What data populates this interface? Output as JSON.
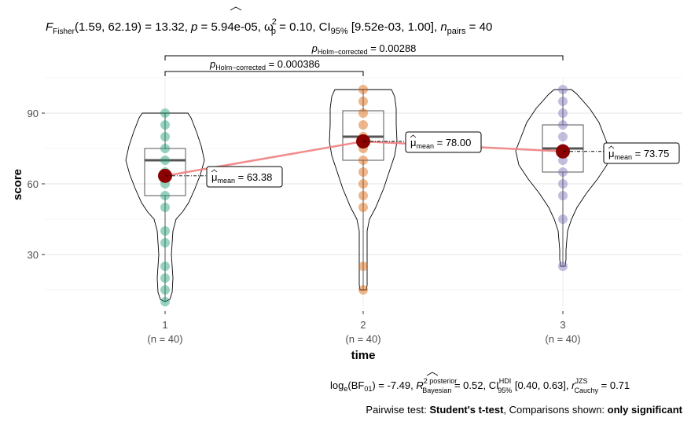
{
  "chart_data": {
    "type": "violin-box-scatter",
    "title": {
      "stat_name": "F",
      "stat_sub": "Fisher",
      "df": "(1.59, 62.19)",
      "stat_value": "13.32",
      "p_label": "p",
      "p_value": "5.94e-05",
      "effect_label": "ω",
      "effect_sup": "2",
      "effect_sub": "p",
      "effect_value": "0.10",
      "ci_label": "CI",
      "ci_sub": "95%",
      "ci_value": "[9.52e-03, 1.00]",
      "n_label": "n",
      "n_sub": "pairs",
      "n_value": "40"
    },
    "xlabel": "time",
    "ylabel": "score",
    "ylim": [
      5,
      105
    ],
    "yticks": [
      30,
      60,
      90
    ],
    "grid": true,
    "categories": [
      "1",
      "2",
      "3"
    ],
    "n_labels": [
      "(n = 40)",
      "(n = 40)",
      "(n = 40)"
    ],
    "groups": [
      {
        "name": "1",
        "color": "#1B9E77",
        "points": [
          90,
          85,
          80,
          75,
          70,
          65,
          60,
          55,
          50,
          40,
          35,
          25,
          20,
          15,
          10
        ],
        "box": {
          "q1": 55,
          "median": 70,
          "q3": 75,
          "min": 10,
          "max": 90
        },
        "mean": 63.38,
        "mean_label": "63.38"
      },
      {
        "name": "2",
        "color": "#D95F02",
        "points": [
          100,
          95,
          90,
          85,
          80,
          75,
          70,
          65,
          60,
          55,
          50,
          25,
          15
        ],
        "box": {
          "q1": 70,
          "median": 80,
          "q3": 91,
          "min": 15,
          "max": 100
        },
        "mean": 78.0,
        "mean_label": "78.00"
      },
      {
        "name": "3",
        "color": "#7570B3",
        "points": [
          100,
          95,
          90,
          85,
          80,
          75,
          70,
          65,
          60,
          55,
          45,
          25
        ],
        "box": {
          "q1": 65,
          "median": 75,
          "q3": 85,
          "min": 25,
          "max": 100
        },
        "mean": 73.75,
        "mean_label": "73.75"
      }
    ],
    "mean_label_prefix": "μ",
    "mean_label_sub": "mean",
    "pairwise": [
      {
        "from": "1",
        "to": "2",
        "p_label": "p",
        "p_sub": "Holm−corrected",
        "p_value": "0.000386"
      },
      {
        "from": "1",
        "to": "3",
        "p_label": "p",
        "p_sub": "Holm−corrected",
        "p_value": "0.00288"
      }
    ],
    "bayes_caption": {
      "bf_label": "log",
      "bf_sub": "e",
      "bf_paren": "(BF",
      "bf_paren_sub": "01",
      "bf_value": "-7.49",
      "r2_label": "R",
      "r2_sup": "2 posterior",
      "r2_sub": "Bayesian",
      "r2_value": "0.52",
      "ci_label": "CI",
      "ci_sup": "HDI",
      "ci_sub": "95%",
      "ci_value": "[0.40, 0.63]",
      "r_label": "r",
      "r_sup": "JZS",
      "r_sub": "Cauchy",
      "r_value": "0.71"
    },
    "pairwise_caption": {
      "prefix": "Pairwise test: ",
      "test": "Student's t-test",
      "middle": ", Comparisons shown: ",
      "shown": "only significant"
    },
    "mean_color": "#8B0000",
    "mean_line_color": "#F08080"
  }
}
